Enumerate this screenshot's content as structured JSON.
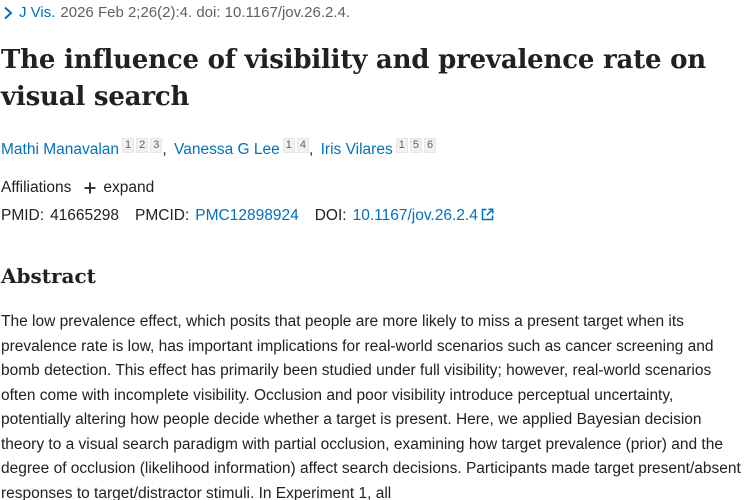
{
  "citation": {
    "journal": "J Vis.",
    "details": "2026 Feb 2;26(2):4. doi: 10.1167/jov.26.2.4."
  },
  "article": {
    "title": "The influence of visibility and prevalence rate on visual search"
  },
  "authors": [
    {
      "name": "Mathi Manavalan",
      "affiliations": [
        "1",
        "2",
        "3"
      ],
      "separator": ","
    },
    {
      "name": "Vanessa G Lee",
      "affiliations": [
        "1",
        "4"
      ],
      "separator": ","
    },
    {
      "name": "Iris Vilares",
      "affiliations": [
        "1",
        "5",
        "6"
      ],
      "separator": ""
    }
  ],
  "affiliations": {
    "label": "Affiliations",
    "expand_label": "expand"
  },
  "identifiers": {
    "pmid_label": "PMID:",
    "pmid": "41665298",
    "pmcid_label": "PMCID:",
    "pmcid": "PMC12898924",
    "doi_label": "DOI:",
    "doi": "10.1167/jov.26.2.4"
  },
  "abstract": {
    "heading": "Abstract",
    "text": "The low prevalence effect, which posits that people are more likely to miss a present target when its prevalence rate is low, has important implications for real-world scenarios such as cancer screening and bomb detection. This effect has primarily been studied under full visibility; however, real-world scenarios often come with incomplete visibility. Occlusion and poor visibility introduce perceptual uncertainty, potentially altering how people decide whether a target is present. Here, we applied Bayesian decision theory to a visual search paradigm with partial occlusion, examining how target prevalence (prior) and the degree of occlusion (likelihood information) affect search decisions. Participants made target present/absent responses to target/distractor stimuli. In Experiment 1, all"
  },
  "colors": {
    "link": "#0071bc",
    "text": "#212121",
    "muted": "#5b616b"
  }
}
